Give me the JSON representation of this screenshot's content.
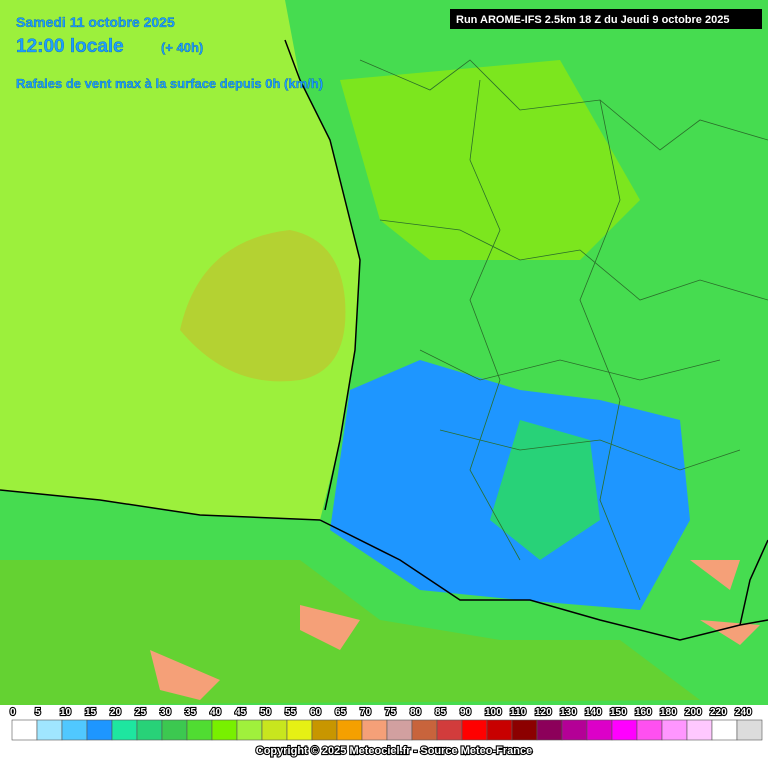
{
  "header": {
    "date": "Samedi 11 octobre 2025",
    "time": "12:00 locale",
    "lead": "(+ 40h)",
    "parameter": "Rafales de vent max à la surface depuis 0h (km/h)",
    "run": "Run AROME-IFS 2.5km 18 Z du Jeudi 9 octobre 2025"
  },
  "legend": {
    "items": [
      {
        "label": 0,
        "color": "#ffffff"
      },
      {
        "label": 5,
        "color": "#a0e6ff"
      },
      {
        "label": 10,
        "color": "#50c8ff"
      },
      {
        "label": 15,
        "color": "#1e96ff"
      },
      {
        "label": 20,
        "color": "#1ee6a0"
      },
      {
        "label": 25,
        "color": "#28d278"
      },
      {
        "label": 30,
        "color": "#3cc850"
      },
      {
        "label": 35,
        "color": "#50dc32"
      },
      {
        "label": 40,
        "color": "#78f000"
      },
      {
        "label": 45,
        "color": "#a0f03c"
      },
      {
        "label": 50,
        "color": "#c8e61e"
      },
      {
        "label": 55,
        "color": "#e6f014"
      },
      {
        "label": 60,
        "color": "#c89600"
      },
      {
        "label": 65,
        "color": "#f5a000"
      },
      {
        "label": 70,
        "color": "#f5a078"
      },
      {
        "label": 75,
        "color": "#d2a0a0"
      },
      {
        "label": 80,
        "color": "#c8643c"
      },
      {
        "label": 85,
        "color": "#d23c3c"
      },
      {
        "label": 90,
        "color": "#ff0000"
      },
      {
        "label": 100,
        "color": "#c80000"
      },
      {
        "label": 110,
        "color": "#8c0000"
      },
      {
        "label": 120,
        "color": "#8c005a"
      },
      {
        "label": 130,
        "color": "#b40096"
      },
      {
        "label": 140,
        "color": "#dc00c8"
      },
      {
        "label": 150,
        "color": "#ff00ff"
      },
      {
        "label": 160,
        "color": "#ff50f0"
      },
      {
        "label": 180,
        "color": "#ff96ff"
      },
      {
        "label": 200,
        "color": "#ffc8ff"
      },
      {
        "label": 220,
        "color": "#ffffff"
      },
      {
        "label": 240,
        "color": "#dcdcdc"
      }
    ],
    "end_color": "#bebebe"
  },
  "footer": {
    "copyright": "Copyright © 2025 Meteociel.fr - Source Meteo-France"
  }
}
